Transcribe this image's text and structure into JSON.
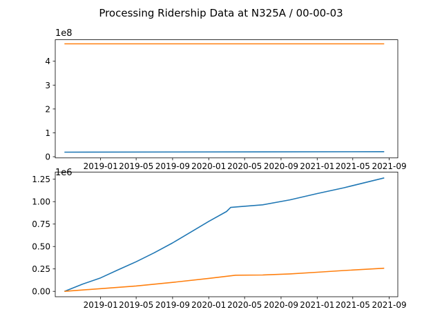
{
  "figure": {
    "title": "Processing Ridership Data at N325A / 00-00-03"
  },
  "colors": {
    "series1": "#1f77b4",
    "series2": "#ff7f0e",
    "axis": "#000000",
    "background": "#ffffff"
  },
  "x_ticks": [
    "2019-01",
    "2019-05",
    "2019-09",
    "2020-01",
    "2020-05",
    "2020-09",
    "2021-01",
    "2021-05",
    "2021-09"
  ],
  "x_range": [
    "2018-08-01",
    "2021-09-30"
  ],
  "chart_data": [
    {
      "type": "line",
      "panel": "top",
      "offset_label": "1e8",
      "y_ticks": [
        "0",
        "1",
        "2",
        "3",
        "4"
      ],
      "ylim": [
        -0.05,
        4.9
      ],
      "grid": false,
      "series": [
        {
          "color": "#1f77b4",
          "x": [
            "2018-09-01",
            "2021-08-15"
          ],
          "y": [
            0.19,
            0.21
          ]
        },
        {
          "color": "#ff7f0e",
          "x": [
            "2018-09-01",
            "2021-08-15"
          ],
          "y": [
            4.73,
            4.73
          ]
        }
      ]
    },
    {
      "type": "line",
      "panel": "bottom",
      "offset_label": "1e6",
      "y_ticks": [
        "0.00",
        "0.25",
        "0.50",
        "0.75",
        "1.00",
        "1.25"
      ],
      "ylim": [
        -0.06,
        1.33
      ],
      "grid": false,
      "series": [
        {
          "color": "#1f77b4",
          "x": [
            "2018-09-01",
            "2018-11-01",
            "2019-01-01",
            "2019-03-01",
            "2019-05-01",
            "2019-07-01",
            "2019-09-01",
            "2019-11-01",
            "2020-01-01",
            "2020-03-01",
            "2020-03-15",
            "2020-04-15",
            "2020-07-01",
            "2020-10-01",
            "2021-01-01",
            "2021-04-01",
            "2021-08-15"
          ],
          "y": [
            0.0,
            0.08,
            0.15,
            0.24,
            0.33,
            0.43,
            0.54,
            0.66,
            0.78,
            0.89,
            0.935,
            0.945,
            0.965,
            1.02,
            1.09,
            1.155,
            1.265
          ]
        },
        {
          "color": "#ff7f0e",
          "x": [
            "2018-09-01",
            "2019-01-01",
            "2019-05-01",
            "2019-09-01",
            "2020-01-01",
            "2020-04-01",
            "2020-07-01",
            "2020-10-01",
            "2021-01-01",
            "2021-04-01",
            "2021-08-15"
          ],
          "y": [
            0.0,
            0.03,
            0.06,
            0.1,
            0.145,
            0.18,
            0.182,
            0.195,
            0.213,
            0.232,
            0.258
          ]
        }
      ]
    }
  ]
}
